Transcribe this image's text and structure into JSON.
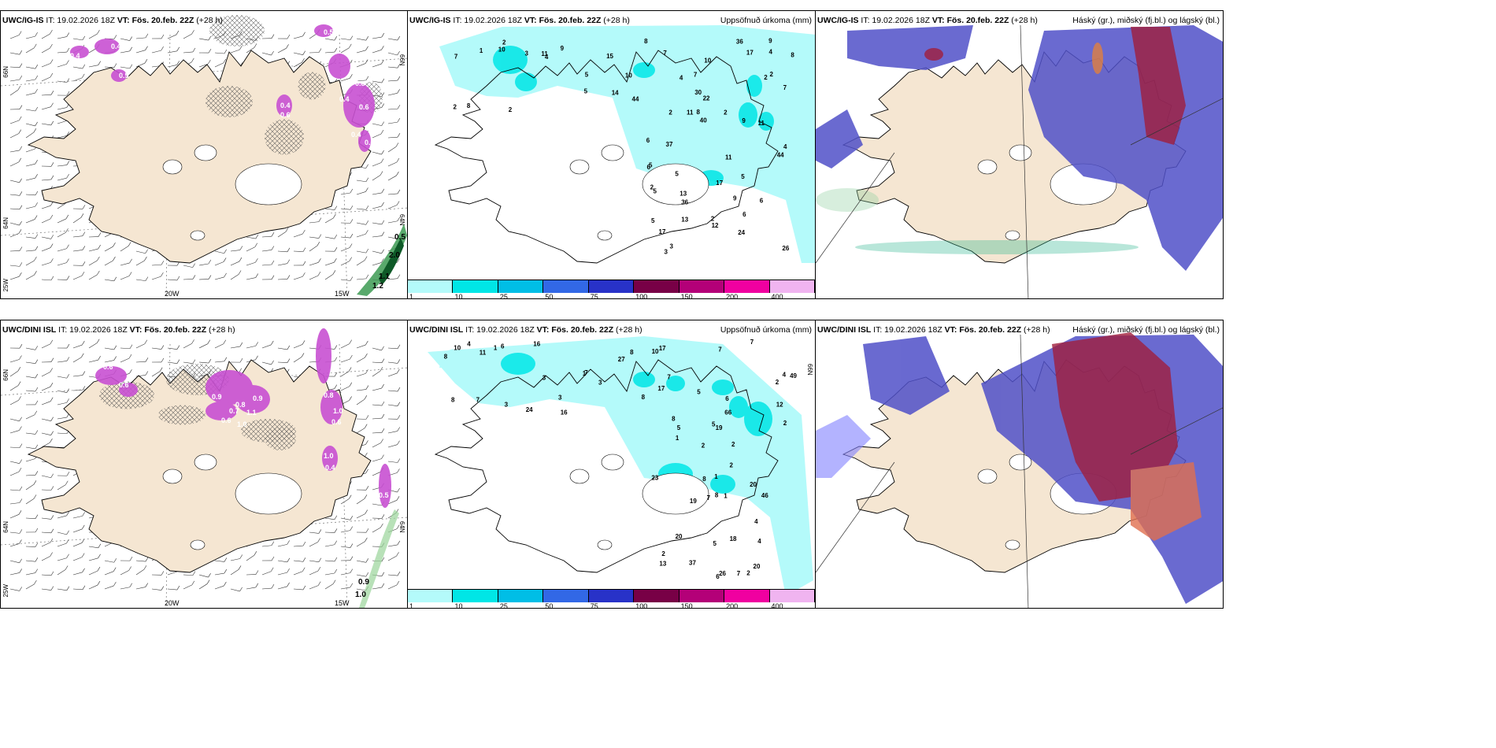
{
  "rows": [
    {
      "left": {
        "model": "UWC/IG-IS",
        "it": "IT: 19.02.2026 18Z",
        "vt": "VT: Fös. 20.feb. 22Z",
        "lead": "(+28 h)"
      },
      "mid": {
        "model": "UWC/IG-IS",
        "it": "IT: 19.02.2026 18Z",
        "vt": "VT: Fös. 20.feb. 22Z",
        "lead": "(+28 h)",
        "right_title": "Uppsöfnuð úrkoma (mm)"
      },
      "right": {
        "model": "UWC/IG-IS",
        "it": "IT: 19.02.2026 18Z",
        "vt": "VT: Fös. 20.feb. 22Z",
        "lead": "(+28 h)",
        "right_title": "Háský (gr.), miðský (fj.bl.) og lágský (bl.)"
      },
      "ice_values": [
        "0.4",
        "0.4",
        "0.5",
        "0.4",
        "0.6",
        "0.6",
        "0.4",
        "0.5",
        "0.8",
        "0.4",
        "0.6"
      ],
      "sea_values": [
        "0.5",
        "2.0",
        "1.1",
        "1.2"
      ],
      "precip_values": [
        "3",
        "4",
        "2",
        "2",
        "17",
        "44",
        "2",
        "2",
        "40",
        "36",
        "17",
        "17",
        "9",
        "2",
        "5",
        "12",
        "37",
        "22",
        "5",
        "36",
        "9",
        "7",
        "9",
        "8",
        "8",
        "4",
        "13",
        "15",
        "6",
        "8",
        "6",
        "7",
        "5",
        "5",
        "4",
        "44",
        "30",
        "7",
        "26",
        "24",
        "3",
        "8",
        "11",
        "10",
        "5",
        "13",
        "11",
        "2",
        "10",
        "9",
        "11",
        "11",
        "14",
        "1",
        "4",
        "5",
        "2",
        "5",
        "2",
        "2",
        "3",
        "7",
        "10",
        "6",
        "6"
      ]
    },
    {
      "left": {
        "model": "UWC/DINI ISL",
        "it": "IT: 19.02.2026 18Z",
        "vt": "VT: Fös. 20.feb. 22Z",
        "lead": "(+28 h)"
      },
      "mid": {
        "model": "UWC/DINI ISL",
        "it": "IT: 19.02.2026 18Z",
        "vt": "VT: Fös. 20.feb. 22Z",
        "lead": "(+28 h)",
        "right_title": "Uppsöfnuð úrkoma (mm)"
      },
      "right": {
        "model": "UWC/DINI ISL",
        "it": "IT: 19.02.2026 18Z",
        "vt": "VT: Fös. 20.feb. 22Z",
        "lead": "(+28 h)",
        "right_title": "Háský (gr.), miðský (fj.bl.) og lágský (bl.)"
      },
      "ice_values": [
        "0.6",
        "0.6",
        "0.9",
        "0.8",
        "0.9",
        "0.7",
        "1.1",
        "0.6",
        "1.0",
        "0.6",
        "0.8",
        "1.0",
        "0.6",
        "2",
        "0.4",
        "0.5",
        "1.0"
      ],
      "sea_values": [
        "0.9",
        "1.0"
      ],
      "precip_values": [
        "1",
        "1",
        "2",
        "3",
        "2",
        "2",
        "8",
        "10",
        "26",
        "20",
        "2",
        "2",
        "7",
        "2",
        "18",
        "1",
        "6",
        "4",
        "5",
        "6",
        "20",
        "20",
        "37",
        "24",
        "16",
        "7",
        "19",
        "23",
        "7",
        "12",
        "8",
        "11",
        "10",
        "7",
        "8",
        "8",
        "5",
        "7",
        "8",
        "19",
        "66",
        "4",
        "46",
        "49",
        "6",
        "7",
        "17",
        "27",
        "16",
        "17",
        "13",
        "5",
        "3",
        "8",
        "2",
        "3",
        "4",
        "1",
        "1",
        "4",
        "3",
        "8",
        "7",
        "5"
      ]
    }
  ],
  "colorbar": {
    "ticks": [
      "1",
      "10",
      "25",
      "50",
      "75",
      "100",
      "150",
      "200",
      "400"
    ],
    "colors": [
      "#b4fafa",
      "#00e6e6",
      "#00bee6",
      "#3268e6",
      "#2832c8",
      "#780046",
      "#b40078",
      "#f000a0",
      "#f0b4f0"
    ]
  },
  "axes": {
    "lon_labels": [
      "20W",
      "15W"
    ],
    "lat_labels_left": [
      "66N",
      "64N",
      "25W"
    ],
    "lat_labels_right": [
      "66N",
      "64N"
    ]
  },
  "colors": {
    "land": "#f5e6d2",
    "sea_ice_purple": "#c850d2",
    "sea_green": "#1e8c3c",
    "precip_light": "#b4fafa",
    "precip_mid": "#00e6e6",
    "cloud_low": "#5050c8",
    "cloud_mid": "#8080ff",
    "cloud_high": "#a01e3c"
  }
}
